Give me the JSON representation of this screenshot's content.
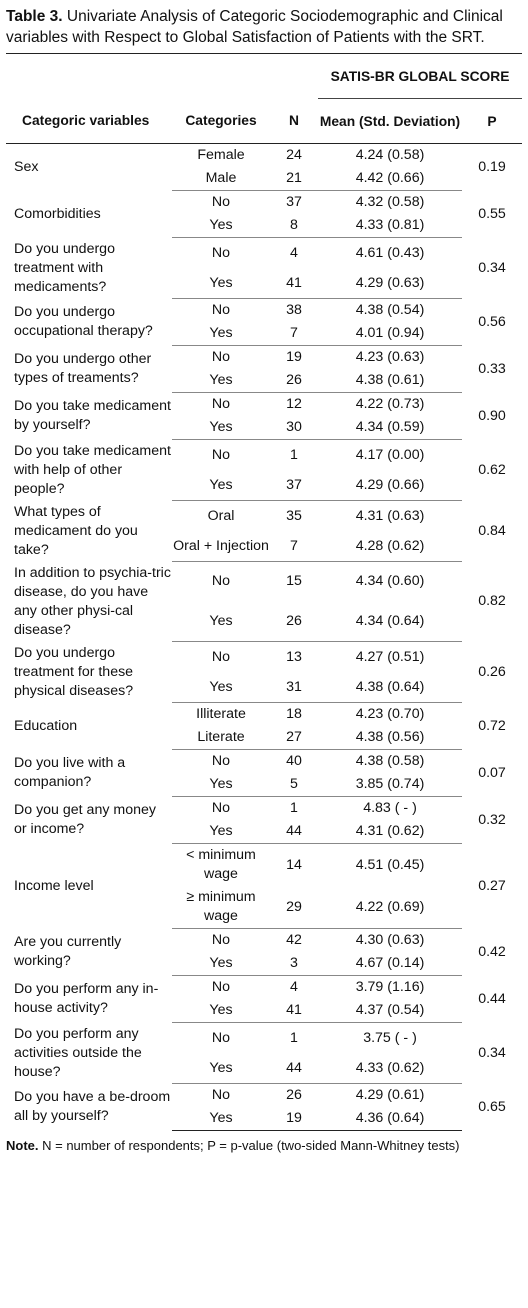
{
  "caption": {
    "label": "Table 3.",
    "text": " Univariate Analysis of Categoric Sociodemographic and Clinical variables with Respect to Global Satisfaction of Patients with the SRT."
  },
  "headers": {
    "score_group": "SATIS-BR GLOBAL SCORE",
    "variables": "Categoric variables",
    "categories": "Categories",
    "n": "N",
    "mean": "Mean (Std. Deviation)",
    "p": "P"
  },
  "rows": [
    {
      "variable": "Sex",
      "p": "0.19",
      "cats": [
        {
          "category": "Female",
          "n": "24",
          "mean": "4.24 (0.58)"
        },
        {
          "category": "Male",
          "n": "21",
          "mean": "4.42 (0.66)"
        }
      ]
    },
    {
      "variable": "Comorbidities",
      "p": "0.55",
      "cats": [
        {
          "category": "No",
          "n": "37",
          "mean": "4.32 (0.58)"
        },
        {
          "category": "Yes",
          "n": "8",
          "mean": "4.33 (0.81)"
        }
      ]
    },
    {
      "variable": "Do you undergo treatment with medicaments?",
      "p": "0.34",
      "cats": [
        {
          "category": "No",
          "n": "4",
          "mean": "4.61 (0.43)"
        },
        {
          "category": "Yes",
          "n": "41",
          "mean": "4.29 (0.63)"
        }
      ]
    },
    {
      "variable": "Do you undergo occupational therapy?",
      "p": "0.56",
      "cats": [
        {
          "category": "No",
          "n": "38",
          "mean": "4.38 (0.54)"
        },
        {
          "category": "Yes",
          "n": "7",
          "mean": "4.01 (0.94)"
        }
      ]
    },
    {
      "variable": "Do you undergo other types of treaments?",
      "p": "0.33",
      "cats": [
        {
          "category": "No",
          "n": "19",
          "mean": "4.23 (0.63)"
        },
        {
          "category": "Yes",
          "n": "26",
          "mean": "4.38 (0.61)"
        }
      ]
    },
    {
      "variable": "Do you take medicament by yourself?",
      "p": "0.90",
      "cats": [
        {
          "category": "No",
          "n": "12",
          "mean": "4.22 (0.73)"
        },
        {
          "category": "Yes",
          "n": "30",
          "mean": "4.34 (0.59)"
        }
      ]
    },
    {
      "variable": "Do you take medicament with help of other people?",
      "p": "0.62",
      "cats": [
        {
          "category": "No",
          "n": "1",
          "mean": "4.17 (0.00)"
        },
        {
          "category": "Yes",
          "n": "37",
          "mean": "4.29 (0.66)"
        }
      ]
    },
    {
      "variable": "What types of medicament do you take?",
      "p": "0.84",
      "cats": [
        {
          "category": "Oral",
          "n": "35",
          "mean": "4.31 (0.63)"
        },
        {
          "category": "Oral + Injection",
          "n": "7",
          "mean": "4.28 (0.62)"
        }
      ]
    },
    {
      "variable": "In addition to psychia-tric disease, do you have any other physi-cal disease?",
      "p": "0.82",
      "cats": [
        {
          "category": "No",
          "n": "15",
          "mean": "4.34 (0.60)"
        },
        {
          "category": "Yes",
          "n": "26",
          "mean": "4.34 (0.64)"
        }
      ]
    },
    {
      "variable": "Do you undergo treatment for these physical diseases?",
      "p": "0.26",
      "cats": [
        {
          "category": "No",
          "n": "13",
          "mean": "4.27 (0.51)"
        },
        {
          "category": "Yes",
          "n": "31",
          "mean": "4.38 (0.64)"
        }
      ]
    },
    {
      "variable": "Education",
      "p": "0.72",
      "cats": [
        {
          "category": "Illiterate",
          "n": "18",
          "mean": "4.23 (0.70)"
        },
        {
          "category": "Literate",
          "n": "27",
          "mean": "4.38 (0.56)"
        }
      ]
    },
    {
      "variable": "Do you live with a companion?",
      "p": "0.07",
      "cats": [
        {
          "category": "No",
          "n": "40",
          "mean": "4.38 (0.58)"
        },
        {
          "category": "Yes",
          "n": "5",
          "mean": "3.85 (0.74)"
        }
      ]
    },
    {
      "variable": "Do you get any money or income?",
      "p": "0.32",
      "cats": [
        {
          "category": "No",
          "n": "1",
          "mean": "4.83 (  -  )"
        },
        {
          "category": "Yes",
          "n": "44",
          "mean": "4.31 (0.62)"
        }
      ]
    },
    {
      "variable": "Income level",
      "p": "0.27",
      "cats": [
        {
          "category": "< minimum wage",
          "n": "14",
          "mean": "4.51 (0.45)"
        },
        {
          "category": "≥ minimum wage",
          "n": "29",
          "mean": "4.22 (0.69)"
        }
      ]
    },
    {
      "variable": "Are you currently working?",
      "p": "0.42",
      "cats": [
        {
          "category": "No",
          "n": "42",
          "mean": "4.30 (0.63)"
        },
        {
          "category": "Yes",
          "n": "3",
          "mean": "4.67 (0.14)"
        }
      ]
    },
    {
      "variable": "Do you perform any in-house activity?",
      "p": "0.44",
      "cats": [
        {
          "category": "No",
          "n": "4",
          "mean": "3.79 (1.16)"
        },
        {
          "category": "Yes",
          "n": "41",
          "mean": "4.37 (0.54)"
        }
      ]
    },
    {
      "variable": "Do you perform any activities outside the house?",
      "p": "0.34",
      "cats": [
        {
          "category": "No",
          "n": "1",
          "mean": "3.75 (  -  )"
        },
        {
          "category": "Yes",
          "n": "44",
          "mean": "4.33 (0.62)"
        }
      ]
    },
    {
      "variable": "Do you have a be-droom all by yourself?",
      "p": "0.65",
      "cats": [
        {
          "category": "No",
          "n": "26",
          "mean": "4.29 (0.61)"
        },
        {
          "category": "Yes",
          "n": "19",
          "mean": "4.36 (0.64)"
        }
      ]
    }
  ],
  "note": {
    "label": "Note.",
    "text": " N = number of respondents; P = p-value (two-sided Mann-Whitney tests)"
  }
}
